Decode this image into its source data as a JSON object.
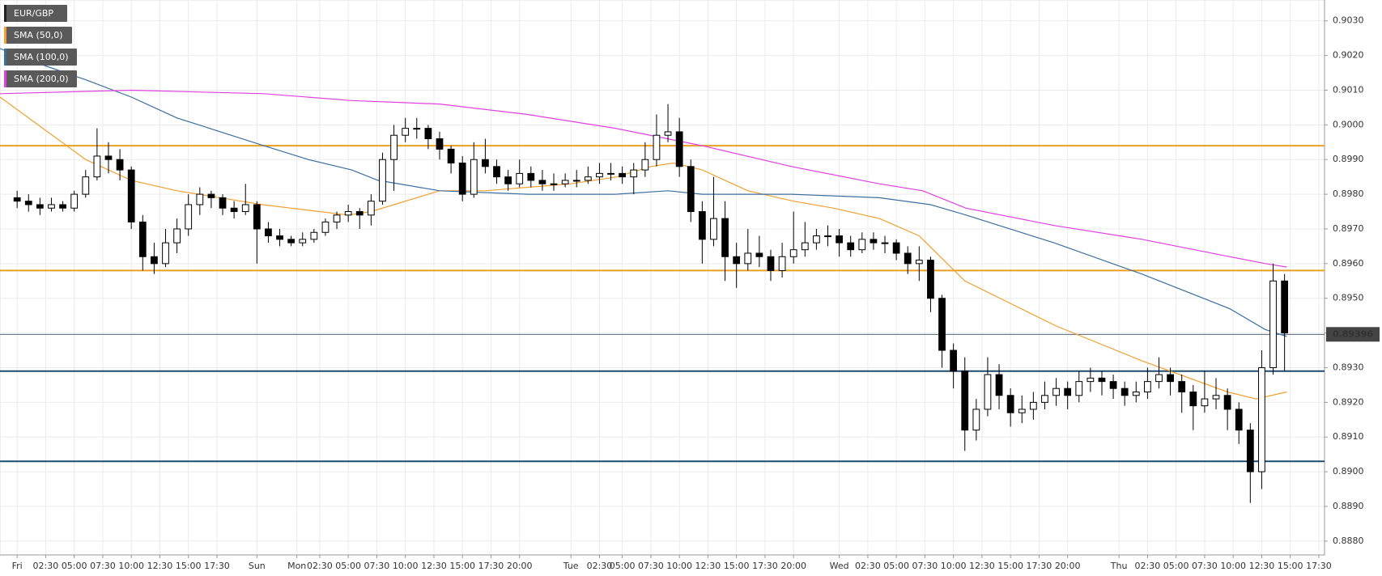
{
  "chart_data": {
    "type": "candlestick",
    "name": "EUR/GBP",
    "color": "#222222",
    "up_color": "#ffffff",
    "down_color": "#000000",
    "x": [
      0,
      1,
      2,
      3,
      4,
      5,
      6,
      7,
      8,
      9,
      10,
      11,
      12,
      13,
      14,
      15,
      16,
      17,
      18,
      19,
      20,
      21,
      22,
      23,
      24,
      25,
      26,
      27,
      28,
      29,
      30,
      31,
      32,
      33,
      34,
      35,
      36,
      37,
      38,
      39,
      40,
      41,
      42,
      43,
      44,
      45,
      46,
      47,
      48,
      49,
      50,
      51,
      52,
      53,
      54,
      55,
      56,
      57,
      58,
      59,
      60,
      61,
      62,
      63,
      64,
      65,
      66,
      67,
      68,
      69,
      70,
      71,
      72,
      73,
      74,
      75,
      76,
      77,
      78,
      79,
      80,
      81,
      82,
      83,
      84,
      85,
      86,
      87,
      88,
      89,
      90,
      91,
      92,
      93,
      94,
      95,
      96,
      97,
      98,
      99,
      100,
      101,
      102,
      103,
      104,
      105,
      106,
      107,
      108,
      109,
      110,
      111
    ],
    "ohlc": [
      [
        0.8979,
        0.8981,
        0.8976,
        0.8978
      ],
      [
        0.8978,
        0.898,
        0.8975,
        0.8977
      ],
      [
        0.8977,
        0.8979,
        0.8974,
        0.8976
      ],
      [
        0.8976,
        0.8979,
        0.8975,
        0.8977
      ],
      [
        0.8977,
        0.8978,
        0.8975,
        0.8976
      ],
      [
        0.8976,
        0.8981,
        0.8975,
        0.898
      ],
      [
        0.898,
        0.8987,
        0.8979,
        0.8985
      ],
      [
        0.8985,
        0.8999,
        0.8984,
        0.8991
      ],
      [
        0.8991,
        0.8995,
        0.8986,
        0.899
      ],
      [
        0.899,
        0.8993,
        0.8984,
        0.8987
      ],
      [
        0.8987,
        0.8988,
        0.897,
        0.8972
      ],
      [
        0.8972,
        0.8974,
        0.8958,
        0.8962
      ],
      [
        0.8962,
        0.8966,
        0.8957,
        0.896
      ],
      [
        0.896,
        0.897,
        0.8959,
        0.8966
      ],
      [
        0.8966,
        0.8973,
        0.8963,
        0.897
      ],
      [
        0.897,
        0.898,
        0.8968,
        0.8977
      ],
      [
        0.8977,
        0.8982,
        0.8974,
        0.898
      ],
      [
        0.898,
        0.8981,
        0.8976,
        0.8979
      ],
      [
        0.8979,
        0.898,
        0.8974,
        0.8976
      ],
      [
        0.8976,
        0.8978,
        0.8973,
        0.8975
      ],
      [
        0.8975,
        0.8983,
        0.8974,
        0.8977
      ],
      [
        0.8977,
        0.8978,
        0.896,
        0.897
      ],
      [
        0.897,
        0.8972,
        0.8966,
        0.8968
      ],
      [
        0.8968,
        0.897,
        0.8965,
        0.8967
      ],
      [
        0.8967,
        0.8968,
        0.8965,
        0.8966
      ],
      [
        0.8966,
        0.8969,
        0.8965,
        0.8967
      ],
      [
        0.8967,
        0.897,
        0.8966,
        0.8969
      ],
      [
        0.8969,
        0.8973,
        0.8968,
        0.8972
      ],
      [
        0.8972,
        0.8975,
        0.897,
        0.8974
      ],
      [
        0.8974,
        0.8977,
        0.8972,
        0.8975
      ],
      [
        0.8975,
        0.8976,
        0.897,
        0.8974
      ],
      [
        0.8974,
        0.898,
        0.8971,
        0.8978
      ],
      [
        0.8978,
        0.8992,
        0.8977,
        0.899
      ],
      [
        0.899,
        0.9,
        0.8981,
        0.8997
      ],
      [
        0.8997,
        0.9002,
        0.8995,
        0.8999
      ],
      [
        0.8999,
        0.9002,
        0.8996,
        0.8999
      ],
      [
        0.8999,
        0.9,
        0.8993,
        0.8996
      ],
      [
        0.8996,
        0.8998,
        0.899,
        0.8993
      ],
      [
        0.8993,
        0.8994,
        0.8986,
        0.8989
      ],
      [
        0.8989,
        0.8991,
        0.8978,
        0.898
      ],
      [
        0.898,
        0.8995,
        0.8979,
        0.899
      ],
      [
        0.899,
        0.8996,
        0.8986,
        0.8988
      ],
      [
        0.8988,
        0.899,
        0.8983,
        0.8985
      ],
      [
        0.8985,
        0.8987,
        0.8981,
        0.8983
      ],
      [
        0.8983,
        0.899,
        0.8982,
        0.8986
      ],
      [
        0.8986,
        0.8988,
        0.8982,
        0.8984
      ],
      [
        0.8984,
        0.8987,
        0.8981,
        0.8983
      ],
      [
        0.8983,
        0.8986,
        0.8981,
        0.8983
      ],
      [
        0.8983,
        0.8986,
        0.8982,
        0.8984
      ],
      [
        0.8984,
        0.8987,
        0.8982,
        0.8984
      ],
      [
        0.8984,
        0.8988,
        0.8983,
        0.8985
      ],
      [
        0.8985,
        0.8989,
        0.8983,
        0.8986
      ],
      [
        0.8986,
        0.8989,
        0.8984,
        0.8986
      ],
      [
        0.8986,
        0.8988,
        0.8983,
        0.8985
      ],
      [
        0.8985,
        0.8989,
        0.898,
        0.8987
      ],
      [
        0.8987,
        0.8995,
        0.8985,
        0.899
      ],
      [
        0.899,
        0.9003,
        0.8988,
        0.8997
      ],
      [
        0.8997,
        0.9006,
        0.8995,
        0.8998
      ],
      [
        0.8998,
        0.9002,
        0.8985,
        0.8988
      ],
      [
        0.8988,
        0.899,
        0.8972,
        0.8975
      ],
      [
        0.8975,
        0.8978,
        0.896,
        0.8967
      ],
      [
        0.8967,
        0.8985,
        0.8965,
        0.8973
      ],
      [
        0.8973,
        0.8978,
        0.8955,
        0.8962
      ],
      [
        0.8962,
        0.8966,
        0.8953,
        0.896
      ],
      [
        0.896,
        0.897,
        0.8958,
        0.8963
      ],
      [
        0.8963,
        0.8968,
        0.8959,
        0.8962
      ],
      [
        0.8962,
        0.8964,
        0.8955,
        0.8958
      ],
      [
        0.8958,
        0.8966,
        0.8956,
        0.8962
      ],
      [
        0.8962,
        0.8975,
        0.896,
        0.8964
      ],
      [
        0.8964,
        0.8972,
        0.8962,
        0.8966
      ],
      [
        0.8966,
        0.897,
        0.8964,
        0.8968
      ],
      [
        0.8968,
        0.8971,
        0.8965,
        0.8968
      ],
      [
        0.8968,
        0.897,
        0.8962,
        0.8966
      ],
      [
        0.8966,
        0.8968,
        0.8962,
        0.8964
      ],
      [
        0.8964,
        0.8969,
        0.8963,
        0.8967
      ],
      [
        0.8967,
        0.8969,
        0.8964,
        0.8966
      ],
      [
        0.8966,
        0.8968,
        0.8963,
        0.8966
      ],
      [
        0.8966,
        0.8967,
        0.8961,
        0.8963
      ],
      [
        0.8963,
        0.8965,
        0.8957,
        0.896
      ],
      [
        0.896,
        0.8965,
        0.8955,
        0.8961
      ],
      [
        0.8961,
        0.8962,
        0.8946,
        0.895
      ],
      [
        0.895,
        0.8951,
        0.893,
        0.8935
      ],
      [
        0.8935,
        0.8937,
        0.8924,
        0.8929
      ],
      [
        0.8929,
        0.8933,
        0.8906,
        0.8912
      ],
      [
        0.8912,
        0.8921,
        0.8909,
        0.8918
      ],
      [
        0.8918,
        0.8933,
        0.8916,
        0.8928
      ],
      [
        0.8928,
        0.8931,
        0.8918,
        0.8922
      ],
      [
        0.8922,
        0.8924,
        0.8913,
        0.8917
      ],
      [
        0.8917,
        0.8922,
        0.8914,
        0.8918
      ],
      [
        0.8918,
        0.8923,
        0.8915,
        0.892
      ],
      [
        0.892,
        0.8926,
        0.8918,
        0.8922
      ],
      [
        0.8922,
        0.8927,
        0.8919,
        0.8924
      ],
      [
        0.8924,
        0.8926,
        0.8918,
        0.8922
      ],
      [
        0.8922,
        0.8929,
        0.892,
        0.8926
      ],
      [
        0.8926,
        0.893,
        0.8923,
        0.8927
      ],
      [
        0.8927,
        0.8929,
        0.8922,
        0.8926
      ],
      [
        0.8926,
        0.8928,
        0.8921,
        0.8924
      ],
      [
        0.8924,
        0.8926,
        0.8919,
        0.8922
      ],
      [
        0.8922,
        0.8926,
        0.892,
        0.8923
      ],
      [
        0.8923,
        0.893,
        0.8921,
        0.8926
      ],
      [
        0.8926,
        0.8933,
        0.8924,
        0.8928
      ],
      [
        0.8928,
        0.893,
        0.8922,
        0.8926
      ],
      [
        0.8926,
        0.8928,
        0.8917,
        0.8923
      ],
      [
        0.8923,
        0.8925,
        0.8912,
        0.8919
      ],
      [
        0.8919,
        0.8929,
        0.8917,
        0.8921
      ],
      [
        0.8921,
        0.8927,
        0.8918,
        0.8922
      ],
      [
        0.8922,
        0.8924,
        0.8912,
        0.8918
      ],
      [
        0.8918,
        0.892,
        0.8908,
        0.8912
      ],
      [
        0.8912,
        0.8914,
        0.8891,
        0.89
      ],
      [
        0.89,
        0.8935,
        0.8895,
        0.893
      ],
      [
        0.893,
        0.896,
        0.8928,
        0.8955
      ],
      [
        0.8955,
        0.8957,
        0.8929,
        0.894
      ]
    ],
    "overlays": [
      {
        "name": "SMA (50,0)",
        "color": "#f0a030",
        "x": [
          -1.5,
          6,
          10,
          14,
          21.5,
          29,
          31,
          33,
          37,
          41,
          48.5,
          52.5,
          55.5,
          57.5,
          60,
          64,
          68,
          71.5,
          75.5,
          79,
          83,
          91,
          98.5,
          106,
          108.5,
          111.2
        ],
        "values": [
          0.9008,
          0.899,
          0.8984,
          0.8981,
          0.8977,
          0.8974,
          0.8975,
          0.8977,
          0.8981,
          0.8981,
          0.8983,
          0.8985,
          0.8988,
          0.8989,
          0.8987,
          0.8981,
          0.8978,
          0.8976,
          0.8973,
          0.8968,
          0.8955,
          0.8942,
          0.8932,
          0.8923,
          0.8921,
          0.8923
        ]
      },
      {
        "name": "SMA (100,0)",
        "color": "#3b6fa0",
        "x": [
          -1.5,
          2.5,
          6,
          10,
          14,
          17.8,
          21.6,
          25.5,
          29.3,
          31.6,
          37,
          44.7,
          48.5,
          52.4,
          57,
          60,
          67.8,
          75.5,
          80,
          83.1,
          90.8,
          98.5,
          106.2,
          109.3,
          111.2
        ],
        "values": [
          0.9022,
          0.9017,
          0.9013,
          0.9008,
          0.9002,
          0.8998,
          0.8994,
          0.899,
          0.8987,
          0.8984,
          0.8981,
          0.898,
          0.898,
          0.898,
          0.8981,
          0.898,
          0.898,
          0.8979,
          0.8977,
          0.8974,
          0.8966,
          0.8957,
          0.8947,
          0.8941,
          0.8939
        ]
      },
      {
        "name": "SMA (200,0)",
        "color": "#e040e0",
        "x": [
          -1.5,
          10,
          21.6,
          29.3,
          37,
          44.7,
          52.4,
          60,
          67.8,
          75.5,
          79.3,
          83.1,
          90.8,
          98.5,
          106.2,
          109.3,
          111.2
        ],
        "values": [
          0.9009,
          0.901,
          0.9009,
          0.9007,
          0.9006,
          0.9003,
          0.8999,
          0.8994,
          0.8988,
          0.8983,
          0.8981,
          0.8976,
          0.8971,
          0.8967,
          0.8962,
          0.896,
          0.8959
        ]
      }
    ],
    "levels": [
      {
        "value": 0.8994,
        "color": "#e8a020"
      },
      {
        "value": 0.8958,
        "color": "#e8a020"
      },
      {
        "value": 0.8929,
        "color": "#1e4a6e"
      },
      {
        "value": 0.8903,
        "color": "#1e4a6e"
      }
    ],
    "last_price": {
      "value": 0.89396,
      "label": "0.89396"
    },
    "xlim": [
      -1.5,
      114.5
    ],
    "ylim": [
      0.8876,
      0.9036
    ],
    "grid": true,
    "yticks": [
      {
        "value": 0.888,
        "label": "0.8880"
      },
      {
        "value": 0.889,
        "label": "0.8890"
      },
      {
        "value": 0.89,
        "label": "0.8900"
      },
      {
        "value": 0.891,
        "label": "0.8910"
      },
      {
        "value": 0.892,
        "label": "0.8920"
      },
      {
        "value": 0.893,
        "label": "0.8930"
      },
      {
        "value": 0.894,
        "label": "0.8940"
      },
      {
        "value": 0.895,
        "label": "0.8950"
      },
      {
        "value": 0.896,
        "label": "0.8960"
      },
      {
        "value": 0.897,
        "label": "0.8970"
      },
      {
        "value": 0.898,
        "label": "0.8980"
      },
      {
        "value": 0.899,
        "label": "0.8990"
      },
      {
        "value": 0.9,
        "label": "0.9000"
      },
      {
        "value": 0.901,
        "label": "0.9010"
      },
      {
        "value": 0.902,
        "label": "0.9020"
      },
      {
        "value": 0.903,
        "label": "0.9030"
      }
    ],
    "xticks": [
      {
        "value": 0,
        "label": "Fri"
      },
      {
        "value": 2.5,
        "label": "02:30"
      },
      {
        "value": 5,
        "label": "05:00"
      },
      {
        "value": 7.5,
        "label": "07:30"
      },
      {
        "value": 10,
        "label": "10:00"
      },
      {
        "value": 12.5,
        "label": "12:30"
      },
      {
        "value": 15,
        "label": "15:00"
      },
      {
        "value": 17.5,
        "label": "17:30"
      },
      {
        "value": 21,
        "label": "Sun"
      },
      {
        "value": 24.5,
        "label": "Mon"
      },
      {
        "value": 26.5,
        "label": "02:30"
      },
      {
        "value": 29,
        "label": "05:00"
      },
      {
        "value": 31.5,
        "label": "07:30"
      },
      {
        "value": 34,
        "label": "10:00"
      },
      {
        "value": 36.5,
        "label": "12:30"
      },
      {
        "value": 39,
        "label": "15:00"
      },
      {
        "value": 41.5,
        "label": "17:30"
      },
      {
        "value": 44,
        "label": "20:00"
      },
      {
        "value": 48.5,
        "label": "Tue"
      },
      {
        "value": 51,
        "label": "02:30"
      },
      {
        "value": 53,
        "label": "05:00"
      },
      {
        "value": 55.5,
        "label": "07:30"
      },
      {
        "value": 58,
        "label": "10:00"
      },
      {
        "value": 60.5,
        "label": "12:30"
      },
      {
        "value": 63,
        "label": "15:00"
      },
      {
        "value": 65.5,
        "label": "17:30"
      },
      {
        "value": 68,
        "label": "20:00"
      },
      {
        "value": 72,
        "label": "Wed"
      },
      {
        "value": 74.5,
        "label": "02:30"
      },
      {
        "value": 77,
        "label": "05:00"
      },
      {
        "value": 79.5,
        "label": "07:30"
      },
      {
        "value": 82,
        "label": "10:00"
      },
      {
        "value": 84.5,
        "label": "12:30"
      },
      {
        "value": 87,
        "label": "15:00"
      },
      {
        "value": 89.5,
        "label": "17:30"
      },
      {
        "value": 92,
        "label": "20:00"
      },
      {
        "value": 96.5,
        "label": "Thu"
      },
      {
        "value": 99,
        "label": "02:30"
      },
      {
        "value": 101.5,
        "label": "05:00"
      },
      {
        "value": 104,
        "label": "07:30"
      },
      {
        "value": 106.5,
        "label": "10:00"
      },
      {
        "value": 109,
        "label": "12:30"
      },
      {
        "value": 111.5,
        "label": "15:00"
      },
      {
        "value": 114,
        "label": "17:30"
      }
    ]
  }
}
